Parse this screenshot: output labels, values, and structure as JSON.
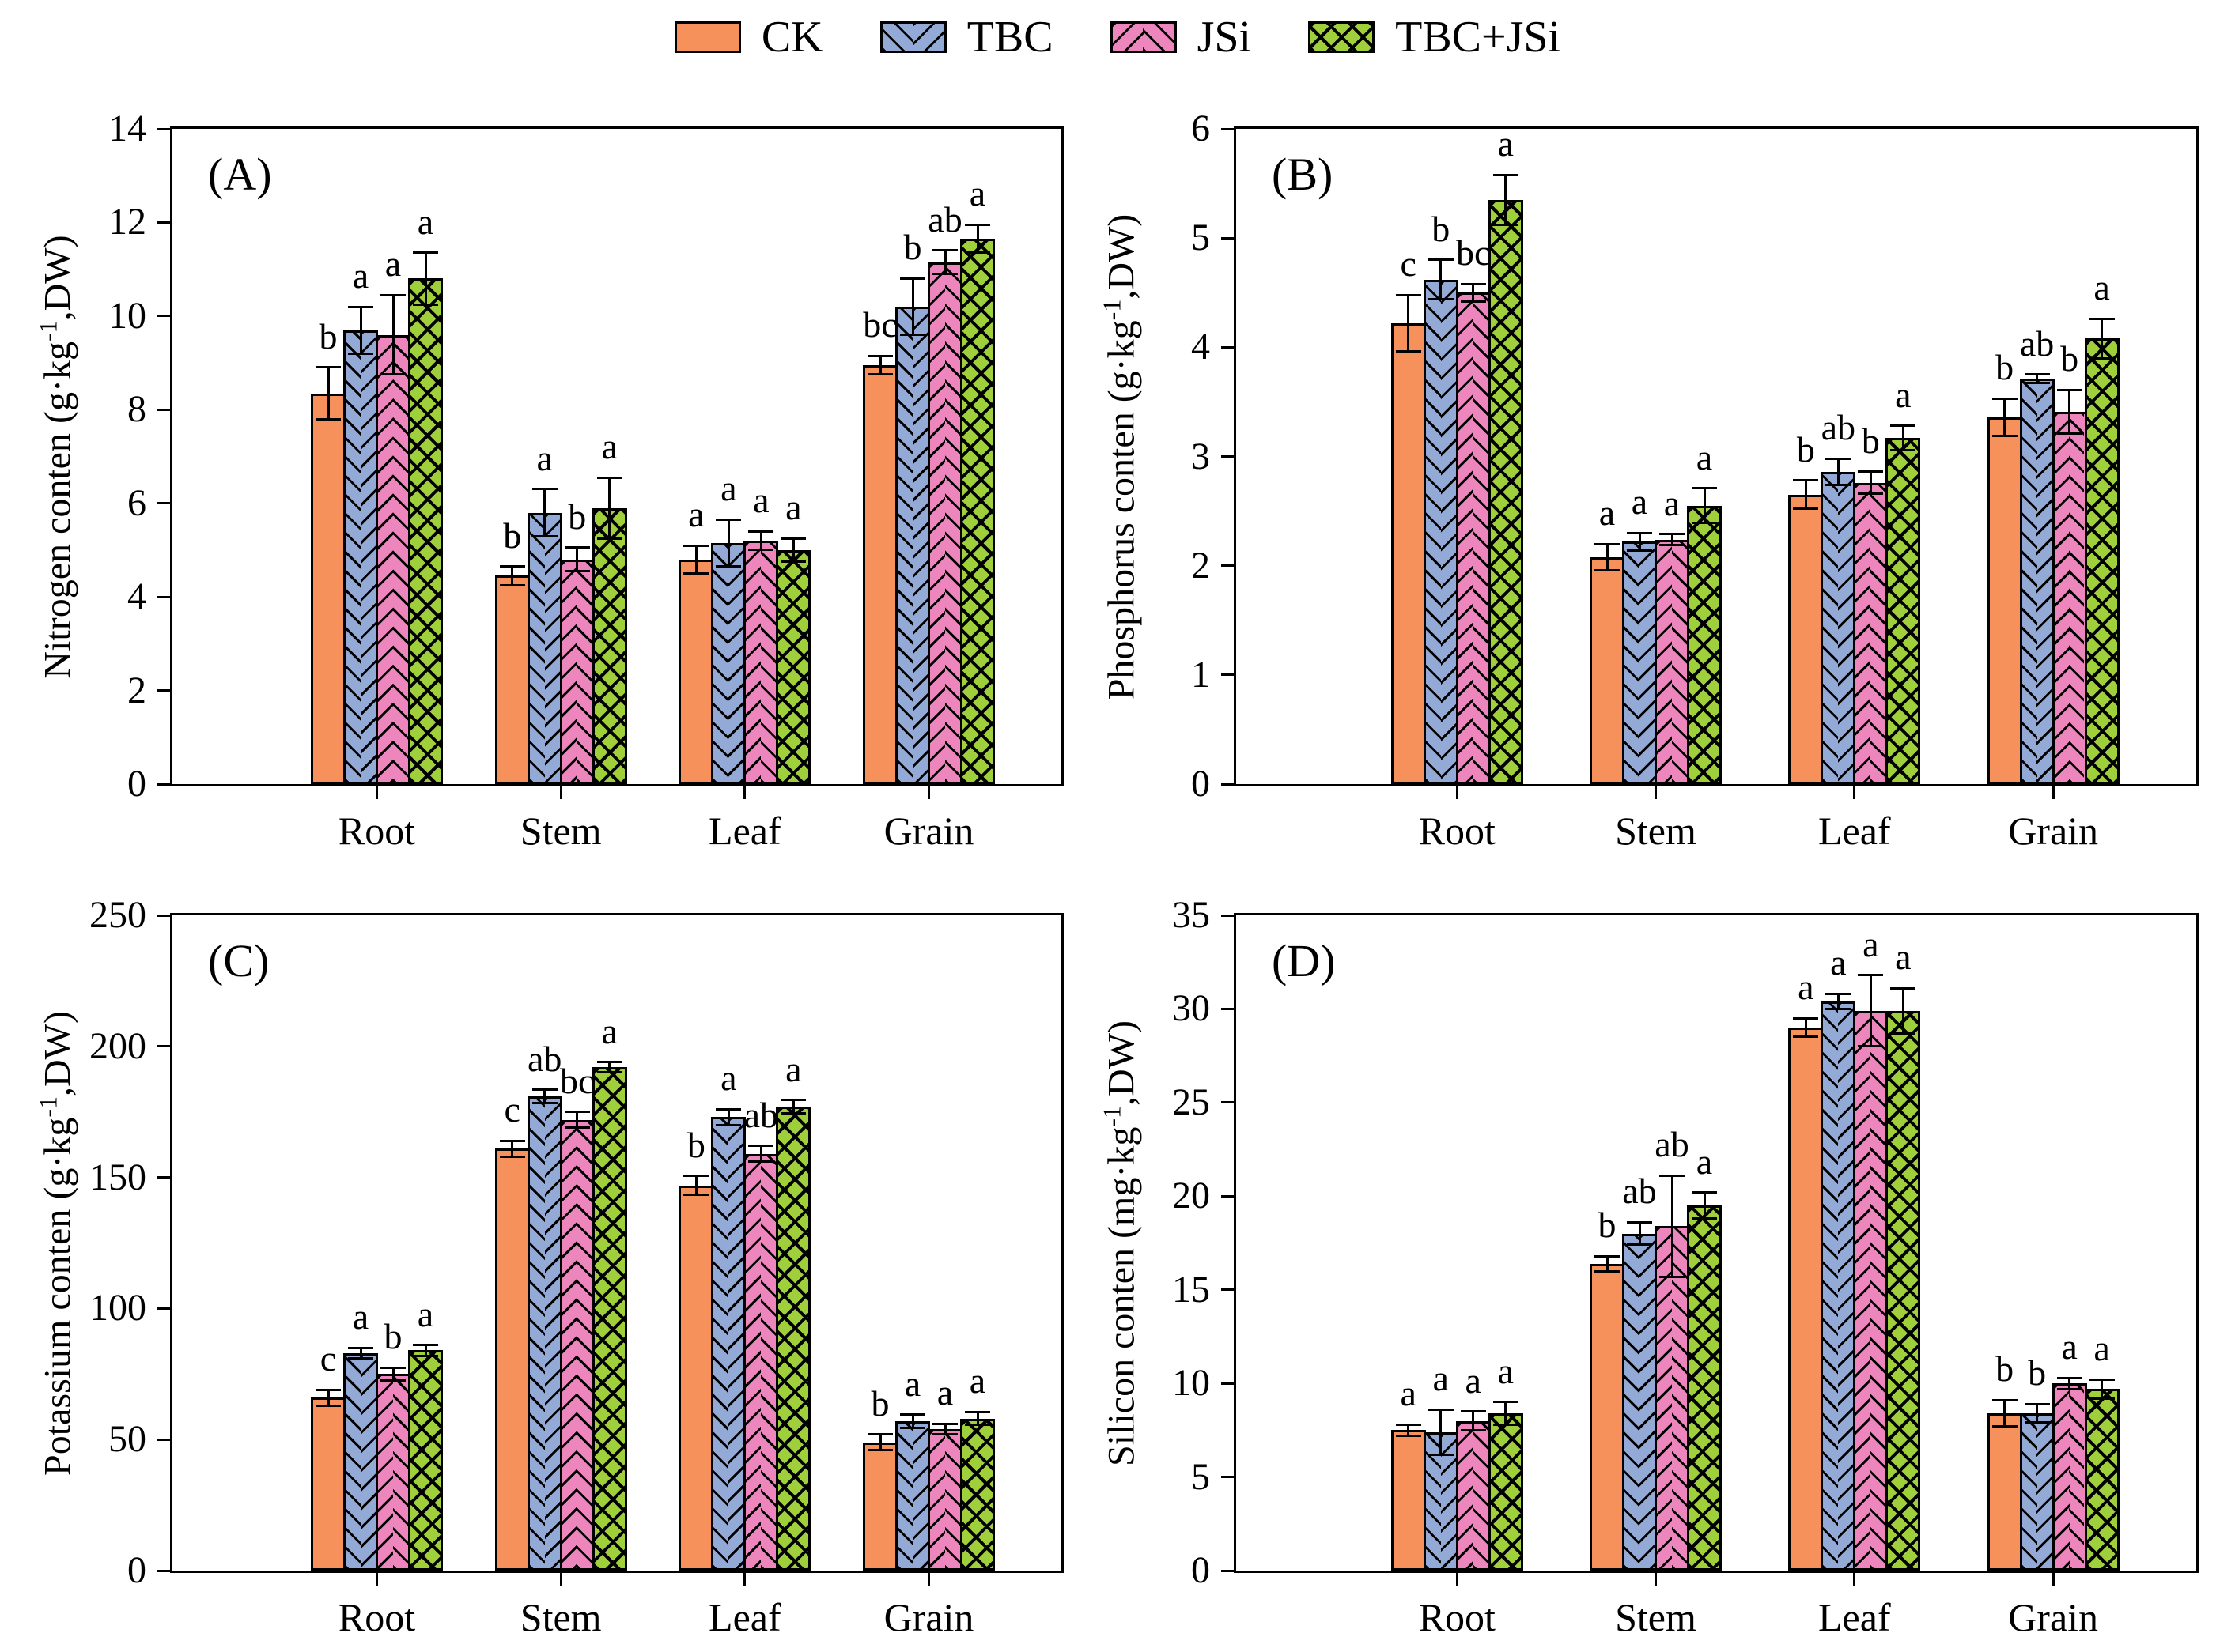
{
  "legend": {
    "items": [
      {
        "label": "CK"
      },
      {
        "label": "TBC"
      },
      {
        "label": "JSi"
      },
      {
        "label": "TBC+JSi"
      }
    ]
  },
  "colors": {
    "ck": "#F6915C",
    "tbc": "#93A9D6",
    "jsi": "#EE86BE",
    "tbc_jsi": "#9FCF3A",
    "axis": "#000000"
  },
  "chart_data": [
    {
      "type": "bar",
      "panel_label": "(A)",
      "ylabel_prefix": "Nitrogen conten (g·kg",
      "ylabel_sup": "-1",
      "ylabel_suffix": ",DW)",
      "ylim": [
        0,
        14
      ],
      "yticks": [
        0,
        2,
        4,
        6,
        8,
        10,
        12,
        14
      ],
      "grid": "off",
      "legend_position": "top",
      "categories": [
        "Root",
        "Stem",
        "Leaf",
        "Grain"
      ],
      "series": [
        {
          "name": "CK",
          "values": [
            8.35,
            4.45,
            4.8,
            8.95
          ],
          "errors": [
            0.55,
            0.2,
            0.3,
            0.2
          ],
          "letters": [
            "b",
            "b",
            "a",
            "bc"
          ]
        },
        {
          "name": "TBC",
          "values": [
            9.7,
            5.8,
            5.15,
            10.2
          ],
          "errors": [
            0.5,
            0.5,
            0.5,
            0.6
          ],
          "letters": [
            "a",
            "a",
            "a",
            "b"
          ]
        },
        {
          "name": "JSi",
          "values": [
            9.6,
            4.8,
            5.2,
            11.15
          ],
          "errors": [
            0.85,
            0.25,
            0.2,
            0.25
          ],
          "letters": [
            "a",
            "b",
            "a",
            "ab"
          ]
        },
        {
          "name": "TBC+JSi",
          "values": [
            10.8,
            5.9,
            5.0,
            11.65
          ],
          "errors": [
            0.55,
            0.65,
            0.25,
            0.3
          ],
          "letters": [
            "a",
            "a",
            "a",
            "a"
          ]
        }
      ]
    },
    {
      "type": "bar",
      "panel_label": "(B)",
      "ylabel_prefix": "Phosphorus conten (g·kg",
      "ylabel_sup": "-1",
      "ylabel_suffix": ",DW)",
      "ylim": [
        0,
        6
      ],
      "yticks": [
        0,
        1,
        2,
        3,
        4,
        5,
        6
      ],
      "grid": "off",
      "legend_position": "top",
      "categories": [
        "Root",
        "Stem",
        "Leaf",
        "Grain"
      ],
      "series": [
        {
          "name": "CK",
          "values": [
            4.22,
            2.08,
            2.65,
            3.36
          ],
          "errors": [
            0.26,
            0.12,
            0.13,
            0.17
          ],
          "letters": [
            "c",
            "a",
            "b",
            "b"
          ]
        },
        {
          "name": "TBC",
          "values": [
            4.62,
            2.22,
            2.86,
            3.71
          ],
          "errors": [
            0.18,
            0.08,
            0.12,
            0.04
          ],
          "letters": [
            "b",
            "a",
            "ab",
            "ab"
          ]
        },
        {
          "name": "JSi",
          "values": [
            4.5,
            2.24,
            2.76,
            3.41
          ],
          "errors": [
            0.08,
            0.05,
            0.1,
            0.2
          ],
          "letters": [
            "bc",
            "a",
            "b",
            "b"
          ]
        },
        {
          "name": "TBC+JSi",
          "values": [
            5.35,
            2.55,
            3.17,
            4.08
          ],
          "errors": [
            0.23,
            0.16,
            0.11,
            0.18
          ],
          "letters": [
            "a",
            "a",
            "a",
            "a"
          ]
        }
      ]
    },
    {
      "type": "bar",
      "panel_label": "(C)",
      "ylabel_prefix": "Potassium conten (g·kg",
      "ylabel_sup": "-1",
      "ylabel_suffix": ",DW)",
      "ylim": [
        0,
        250
      ],
      "yticks": [
        0,
        50,
        100,
        150,
        200,
        250
      ],
      "grid": "off",
      "legend_position": "top",
      "categories": [
        "Root",
        "Stem",
        "Leaf",
        "Grain"
      ],
      "series": [
        {
          "name": "CK",
          "values": [
            66,
            161,
            147,
            49
          ],
          "errors": [
            3,
            3,
            3.5,
            3
          ],
          "letters": [
            "c",
            "c",
            "b",
            "b"
          ]
        },
        {
          "name": "TBC",
          "values": [
            83,
            181,
            173,
            57
          ],
          "errors": [
            2,
            2.5,
            3,
            2.5
          ],
          "letters": [
            "a",
            "ab",
            "a",
            "a"
          ]
        },
        {
          "name": "JSi",
          "values": [
            75,
            172,
            159,
            54
          ],
          "errors": [
            2.5,
            3,
            3,
            2
          ],
          "letters": [
            "b",
            "bc",
            "ab",
            "a"
          ]
        },
        {
          "name": "TBC+JSi",
          "values": [
            84,
            192,
            177,
            58
          ],
          "errors": [
            2,
            2,
            2.5,
            2.5
          ],
          "letters": [
            "a",
            "a",
            "a",
            "a"
          ]
        }
      ]
    },
    {
      "type": "bar",
      "panel_label": "(D)",
      "ylabel_prefix": "Silicon conten (mg·kg",
      "ylabel_sup": "-1",
      "ylabel_suffix": ",DW)",
      "ylim": [
        0,
        35
      ],
      "yticks": [
        0,
        5,
        10,
        15,
        20,
        25,
        30,
        35
      ],
      "grid": "off",
      "legend_position": "top",
      "categories": [
        "Root",
        "Stem",
        "Leaf",
        "Grain"
      ],
      "series": [
        {
          "name": "CK",
          "values": [
            7.5,
            16.4,
            29.0,
            8.4
          ],
          "errors": [
            0.3,
            0.4,
            0.5,
            0.7
          ],
          "letters": [
            "a",
            "b",
            "a",
            "b"
          ]
        },
        {
          "name": "TBC",
          "values": [
            7.4,
            18.0,
            30.4,
            8.4
          ],
          "errors": [
            1.2,
            0.6,
            0.4,
            0.5
          ],
          "letters": [
            "a",
            "ab",
            "a",
            "b"
          ]
        },
        {
          "name": "JSi",
          "values": [
            8.0,
            18.4,
            29.9,
            10.0
          ],
          "errors": [
            0.5,
            2.7,
            1.9,
            0.3
          ],
          "letters": [
            "a",
            "ab",
            "a",
            "a"
          ]
        },
        {
          "name": "TBC+JSi",
          "values": [
            8.4,
            19.5,
            29.9,
            9.7
          ],
          "errors": [
            0.6,
            0.7,
            1.2,
            0.5
          ],
          "letters": [
            "a",
            "a",
            "a",
            "a"
          ]
        }
      ]
    }
  ]
}
